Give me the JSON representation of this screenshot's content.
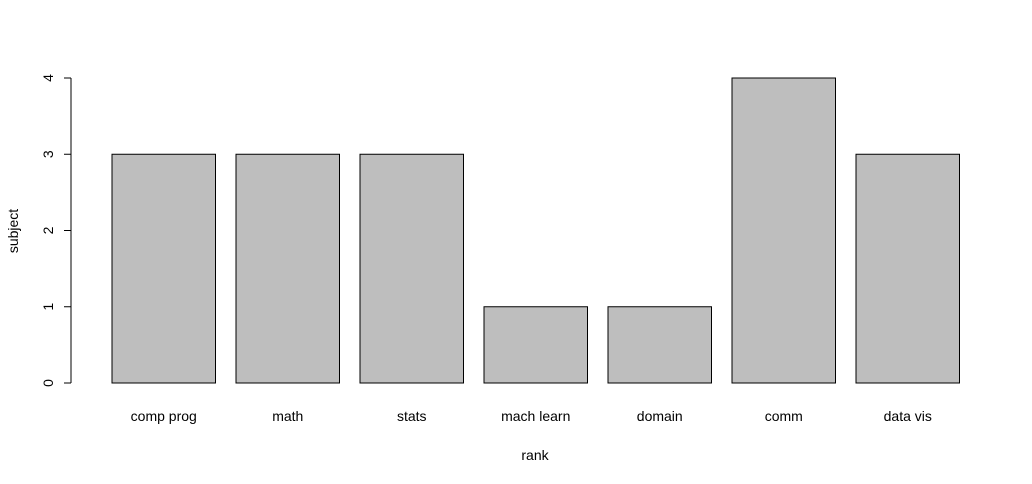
{
  "chart_data": {
    "type": "bar",
    "categories": [
      "comp prog",
      "math",
      "stats",
      "mach learn",
      "domain",
      "comm",
      "data vis"
    ],
    "values": [
      3,
      3,
      3,
      1,
      1,
      4,
      3
    ],
    "title": "",
    "xlabel": "rank",
    "ylabel": "subject",
    "ylim": [
      0,
      4
    ],
    "yticks": [
      "0",
      "1",
      "2",
      "3",
      "4"
    ],
    "grid": false,
    "legend": "none",
    "colors": {
      "bar_fill": "#bebebe",
      "bar_stroke": "#000000"
    }
  }
}
